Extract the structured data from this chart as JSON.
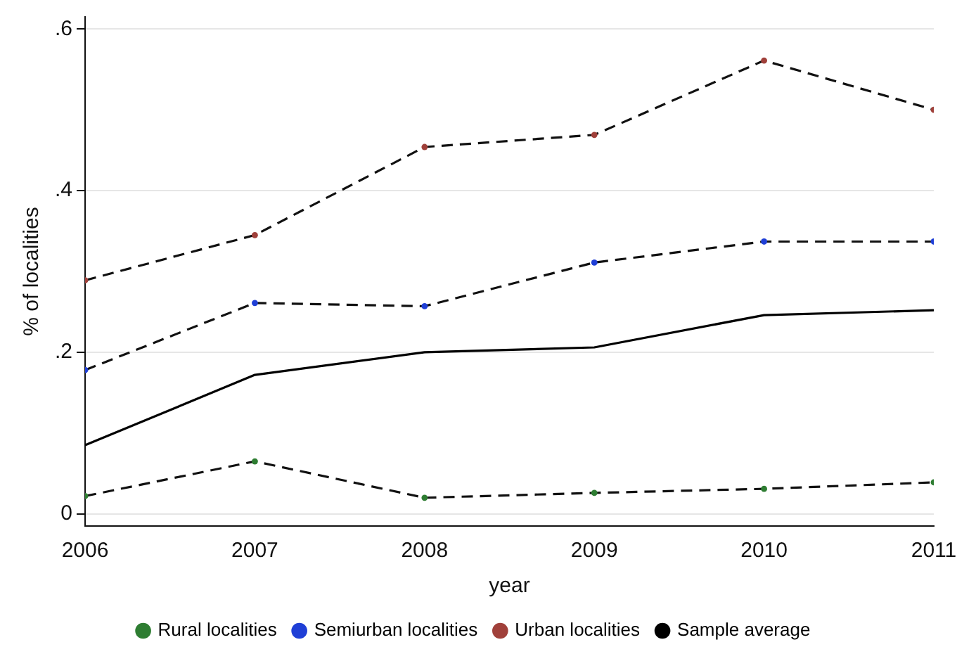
{
  "chart_data": {
    "type": "line",
    "xlabel": "year",
    "ylabel": "% of localities",
    "x": [
      2006,
      2007,
      2008,
      2009,
      2010,
      2011
    ],
    "xlim": [
      2006,
      2011
    ],
    "xticks": [
      2006,
      2007,
      2008,
      2009,
      2010,
      2011
    ],
    "ylim": [
      -0.015,
      0.615
    ],
    "yticks": [
      0,
      {
        "value": 0.2,
        "label": ".2"
      },
      {
        "value": 0.4,
        "label": ".4"
      },
      {
        "value": 0.6,
        "label": ".6"
      }
    ],
    "grid": "y",
    "legend": "bottom",
    "series": [
      {
        "name": "Rural localities",
        "color": "#2e7d32",
        "marker": "circle",
        "line_style": "dashed",
        "values": [
          0.022,
          0.065,
          0.02,
          0.026,
          0.031,
          0.039
        ]
      },
      {
        "name": "Semiurban localities",
        "color": "#1f3fd6",
        "marker": "circle",
        "line_style": "dashed",
        "values": [
          0.178,
          0.261,
          0.257,
          0.311,
          0.337,
          0.337
        ]
      },
      {
        "name": "Urban localities",
        "color": "#a0403a",
        "marker": "circle",
        "line_style": "dashed",
        "values": [
          0.289,
          0.345,
          0.454,
          0.469,
          0.561,
          0.5
        ]
      },
      {
        "name": "Sample average",
        "color": "#000000",
        "marker": "none",
        "line_style": "solid",
        "values": [
          0.085,
          0.172,
          0.2,
          0.206,
          0.246,
          0.252
        ]
      }
    ]
  }
}
